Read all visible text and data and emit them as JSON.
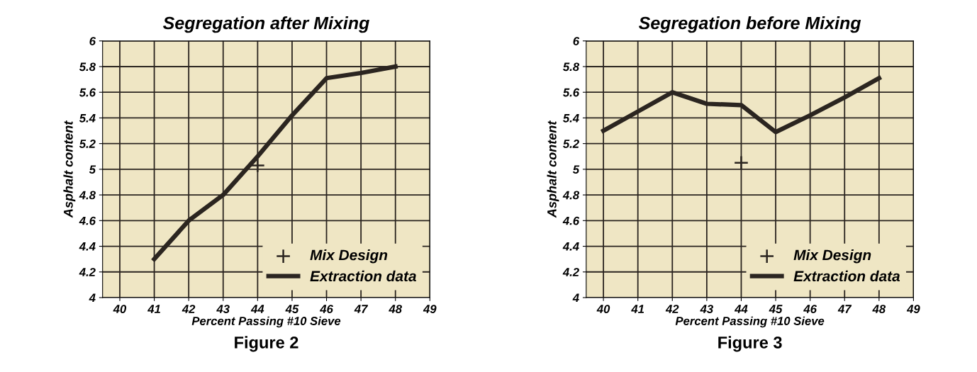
{
  "chart_data": [
    {
      "type": "line",
      "title": "Segregation after Mixing",
      "xlabel": "Percent Passing #10 Sieve",
      "ylabel": "Asphalt content",
      "series": [
        {
          "name": "Mix Design",
          "type": "scatter",
          "marker": "cross",
          "color": "#2b2520",
          "x": [
            44
          ],
          "values": [
            5.03
          ]
        },
        {
          "name": "Extraction data",
          "color": "#2b2520",
          "x": [
            41,
            42,
            43,
            44,
            45,
            46,
            47,
            48
          ],
          "values": [
            4.3,
            4.6,
            4.8,
            5.1,
            5.42,
            5.71,
            5.75,
            5.8
          ]
        }
      ],
      "xlim": [
        39.5,
        49
      ],
      "xticks": [
        40,
        41,
        42,
        43,
        44,
        45,
        46,
        47,
        48,
        49
      ],
      "ylim": [
        4,
        6
      ],
      "yticks": [
        4,
        4.2,
        4.4,
        4.6,
        4.8,
        5,
        5.2,
        5.4,
        5.6,
        5.8,
        6
      ],
      "grid": true,
      "legend": "bottom right",
      "annotations": [
        "Figure 2"
      ]
    },
    {
      "type": "line",
      "title": "Segregation before Mixing",
      "xlabel": "Percent Passing #10 Sieve",
      "ylabel": "Asphalt content",
      "series": [
        {
          "name": "Mix Design",
          "type": "scatter",
          "marker": "cross",
          "color": "#2b2520",
          "x": [
            44
          ],
          "values": [
            5.05
          ]
        },
        {
          "name": "Extraction data",
          "color": "#2b2520",
          "x": [
            40,
            41,
            42,
            43,
            44,
            45,
            46,
            47,
            48
          ],
          "values": [
            5.3,
            5.45,
            5.6,
            5.51,
            5.5,
            5.29,
            5.42,
            5.56,
            5.71
          ]
        }
      ],
      "xlim": [
        39.5,
        49
      ],
      "xticks": [
        40,
        41,
        42,
        43,
        44,
        45,
        46,
        47,
        48,
        49
      ],
      "ylim": [
        4,
        6
      ],
      "yticks": [
        4,
        4.2,
        4.4,
        4.6,
        4.8,
        5,
        5.2,
        5.4,
        5.6,
        5.8,
        6
      ],
      "grid": true,
      "legend": "bottom right",
      "annotations": [
        "Figure 3"
      ]
    }
  ]
}
